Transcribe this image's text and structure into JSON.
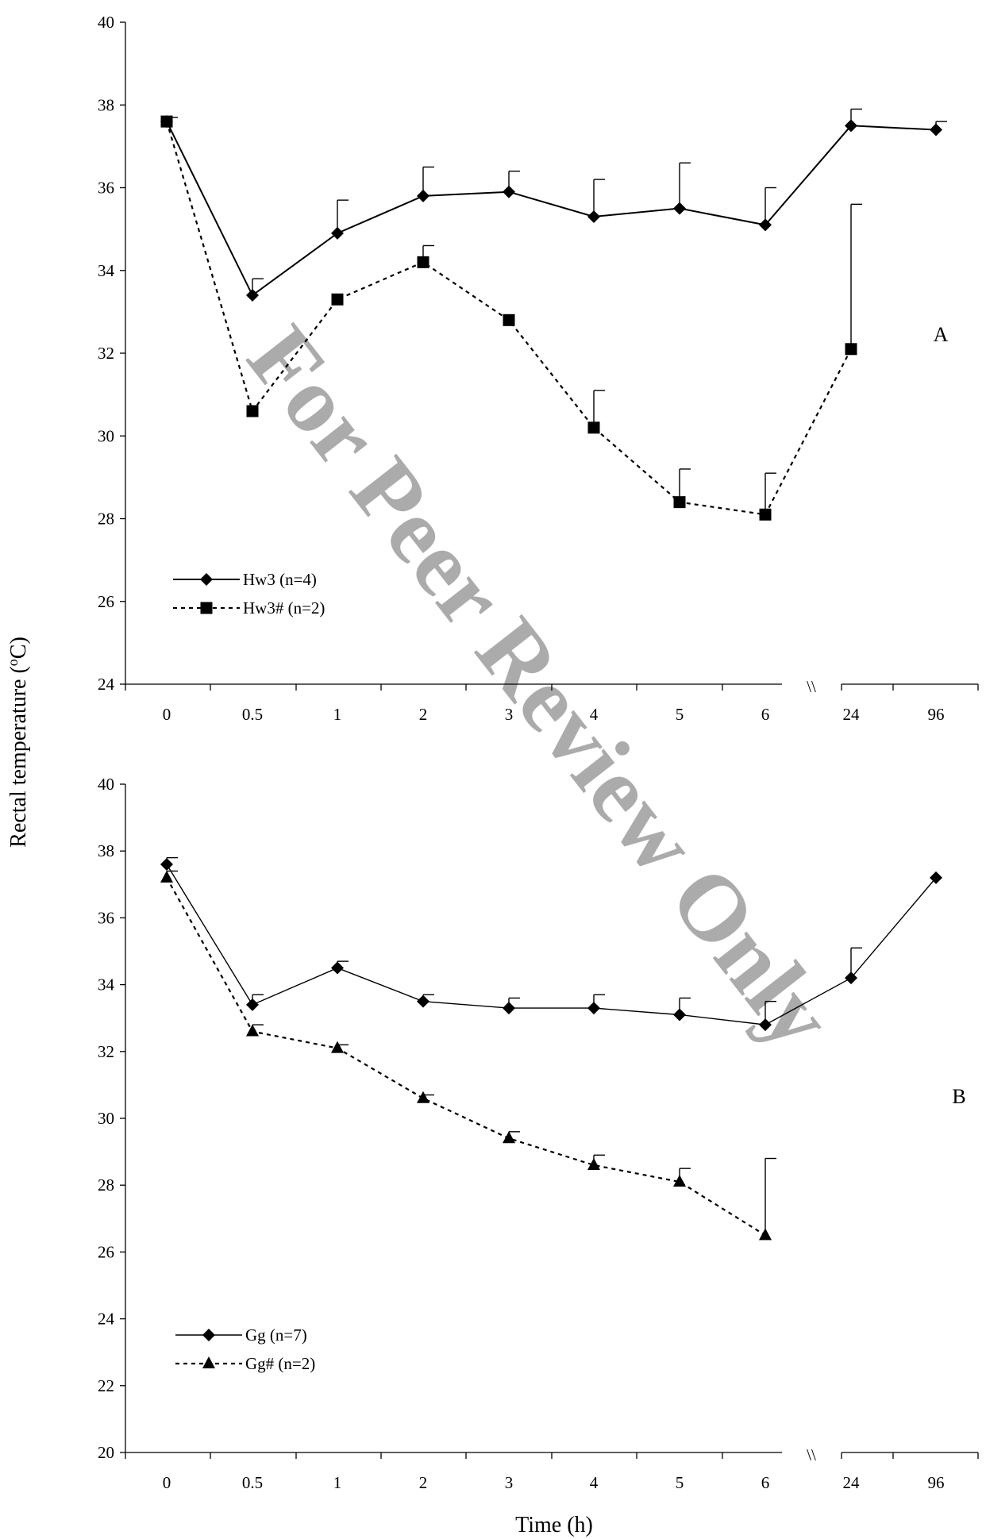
{
  "figure": {
    "ylabel_html": "Rectal temperature (°C)",
    "ylabel_prefix": "Rectal temperature (",
    "ylabel_sup": "o",
    "ylabel_suffix": "C)",
    "xlabel": "Time (h)",
    "axis_break_mark": "\\\\",
    "watermark": "For Peer Review Only"
  },
  "chart_data": [
    {
      "type": "line",
      "panel_label": "A",
      "categories": [
        "0",
        "0.5",
        "1",
        "2",
        "3",
        "4",
        "5",
        "6",
        "24",
        "96"
      ],
      "ylim": [
        24,
        40
      ],
      "yticks": [
        24,
        26,
        28,
        30,
        32,
        34,
        36,
        38,
        40
      ],
      "axis_break_after": "6",
      "legend_position": "bottom-left",
      "grid": false,
      "series": [
        {
          "name": "Hw3 (n=4)",
          "marker": "diamond",
          "line_style": "solid",
          "values": [
            37.6,
            33.4,
            34.9,
            35.8,
            35.9,
            35.3,
            35.5,
            35.1,
            37.5,
            37.4
          ],
          "error_plus": [
            0.1,
            0.4,
            0.8,
            0.7,
            0.5,
            0.9,
            1.1,
            0.9,
            0.4,
            0.2
          ]
        },
        {
          "name": "Hw3# (n=2)",
          "marker": "square",
          "line_style": "dashed",
          "values": [
            37.6,
            30.6,
            33.3,
            34.2,
            32.8,
            30.2,
            28.4,
            28.1,
            32.1,
            null
          ],
          "error_plus": [
            0,
            0,
            0,
            0.4,
            0,
            0.9,
            0.8,
            1.0,
            3.5,
            null
          ]
        }
      ]
    },
    {
      "type": "line",
      "panel_label": "B",
      "categories": [
        "0",
        "0.5",
        "1",
        "2",
        "3",
        "4",
        "5",
        "6",
        "24",
        "96"
      ],
      "ylim": [
        20,
        40
      ],
      "yticks": [
        20,
        22,
        24,
        26,
        28,
        30,
        32,
        34,
        36,
        38,
        40
      ],
      "axis_break_after": "6",
      "legend_position": "bottom-left",
      "grid": false,
      "series": [
        {
          "name": "Gg (n=7)",
          "marker": "diamond",
          "line_style": "solid",
          "values": [
            37.6,
            33.4,
            34.5,
            33.5,
            33.3,
            33.3,
            33.1,
            32.8,
            34.2,
            37.2
          ],
          "error_plus": [
            0.2,
            0.3,
            0.2,
            0.2,
            0.3,
            0.4,
            0.5,
            0.7,
            0.9,
            0
          ]
        },
        {
          "name": "Gg# (n=2)",
          "marker": "triangle",
          "line_style": "dashed",
          "values": [
            37.2,
            32.6,
            32.1,
            30.6,
            29.4,
            28.6,
            28.1,
            26.5,
            null,
            null
          ],
          "error_plus": [
            0.2,
            0.2,
            0.1,
            0.1,
            0.2,
            0.3,
            0.4,
            2.3,
            null,
            null
          ]
        }
      ]
    }
  ]
}
